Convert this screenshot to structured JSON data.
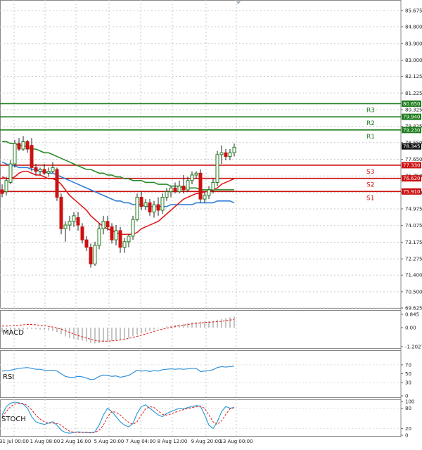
{
  "chart_data": {
    "type": "candlestick",
    "price_axis": {
      "ticks": [
        "85.675",
        "84.800",
        "83.900",
        "83.000",
        "82.125",
        "81.225",
        "80.325",
        "79.425",
        "78.550",
        "77.650",
        "76.750",
        "75.850",
        "74.975",
        "74.075",
        "73.175",
        "72.275",
        "71.400",
        "70.500",
        "69.625"
      ],
      "range": [
        69.625,
        85.675
      ]
    },
    "x_labels": [
      "31 Jul 00:00",
      "1 Aug 08:00",
      "2 Aug 16:00",
      "5 Aug 20:00",
      "7 Aug 04:00",
      "8 Aug 12:00",
      "9 Aug 20:00",
      "13 Aug 00:00"
    ],
    "current_price": "78.345",
    "levels": [
      {
        "name": "R3",
        "value": 80.65,
        "label": "80.650",
        "color": "#1e7d1e"
      },
      {
        "name": "R2",
        "value": 79.94,
        "label": "79.940",
        "color": "#1e7d1e"
      },
      {
        "name": "R1",
        "value": 79.23,
        "label": "79.230",
        "color": "#1e7d1e"
      },
      {
        "name": "S3",
        "value": 77.33,
        "label": "77.330",
        "color": "#cc1111"
      },
      {
        "name": "S2",
        "value": 76.62,
        "label": "76.620",
        "color": "#cc1111"
      },
      {
        "name": "S1",
        "value": 75.91,
        "label": "75.910",
        "color": "#cc1111"
      }
    ],
    "candles": [
      {
        "o": 76.0,
        "h": 76.3,
        "l": 75.6,
        "c": 75.8
      },
      {
        "o": 75.9,
        "h": 76.7,
        "l": 75.7,
        "c": 76.5
      },
      {
        "o": 76.4,
        "h": 77.6,
        "l": 76.3,
        "c": 77.4
      },
      {
        "o": 77.4,
        "h": 78.7,
        "l": 77.2,
        "c": 78.5
      },
      {
        "o": 78.5,
        "h": 78.8,
        "l": 78.1,
        "c": 78.2
      },
      {
        "o": 78.2,
        "h": 78.9,
        "l": 78.1,
        "c": 78.6
      },
      {
        "o": 78.6,
        "h": 78.7,
        "l": 78.0,
        "c": 78.2
      },
      {
        "o": 78.4,
        "h": 78.8,
        "l": 77.0,
        "c": 77.2
      },
      {
        "o": 77.2,
        "h": 77.4,
        "l": 76.8,
        "c": 77.0
      },
      {
        "o": 77.0,
        "h": 77.2,
        "l": 76.8,
        "c": 77.1
      },
      {
        "o": 77.1,
        "h": 77.4,
        "l": 76.8,
        "c": 76.9
      },
      {
        "o": 76.9,
        "h": 77.2,
        "l": 76.7,
        "c": 77.0
      },
      {
        "o": 77.0,
        "h": 77.5,
        "l": 76.9,
        "c": 77.2
      },
      {
        "o": 77.1,
        "h": 77.2,
        "l": 75.4,
        "c": 75.6
      },
      {
        "o": 75.6,
        "h": 75.8,
        "l": 73.6,
        "c": 73.9
      },
      {
        "o": 73.9,
        "h": 74.3,
        "l": 73.2,
        "c": 74.1
      },
      {
        "o": 74.1,
        "h": 74.6,
        "l": 73.8,
        "c": 74.3
      },
      {
        "o": 74.3,
        "h": 74.8,
        "l": 74.0,
        "c": 74.6
      },
      {
        "o": 74.5,
        "h": 74.8,
        "l": 73.8,
        "c": 74.1
      },
      {
        "o": 74.0,
        "h": 74.2,
        "l": 73.1,
        "c": 73.3
      },
      {
        "o": 73.3,
        "h": 73.5,
        "l": 72.7,
        "c": 72.9
      },
      {
        "o": 72.9,
        "h": 73.1,
        "l": 71.8,
        "c": 72.0
      },
      {
        "o": 72.0,
        "h": 73.2,
        "l": 71.9,
        "c": 73.0
      },
      {
        "o": 73.0,
        "h": 74.2,
        "l": 72.8,
        "c": 73.9
      },
      {
        "o": 73.9,
        "h": 74.6,
        "l": 73.6,
        "c": 74.3
      },
      {
        "o": 74.3,
        "h": 74.6,
        "l": 73.8,
        "c": 74.0
      },
      {
        "o": 74.0,
        "h": 74.2,
        "l": 73.1,
        "c": 73.3
      },
      {
        "o": 73.3,
        "h": 74.1,
        "l": 73.0,
        "c": 73.8
      },
      {
        "o": 73.8,
        "h": 74.0,
        "l": 72.6,
        "c": 72.9
      },
      {
        "o": 72.9,
        "h": 73.4,
        "l": 72.6,
        "c": 73.2
      },
      {
        "o": 73.2,
        "h": 73.6,
        "l": 72.9,
        "c": 73.5
      },
      {
        "o": 73.5,
        "h": 74.6,
        "l": 73.3,
        "c": 74.4
      },
      {
        "o": 74.4,
        "h": 75.8,
        "l": 74.3,
        "c": 75.6
      },
      {
        "o": 75.6,
        "h": 75.9,
        "l": 74.9,
        "c": 75.1
      },
      {
        "o": 75.1,
        "h": 75.5,
        "l": 74.9,
        "c": 75.3
      },
      {
        "o": 75.3,
        "h": 75.5,
        "l": 74.6,
        "c": 74.8
      },
      {
        "o": 74.8,
        "h": 75.4,
        "l": 74.5,
        "c": 75.2
      },
      {
        "o": 75.2,
        "h": 75.6,
        "l": 74.6,
        "c": 74.9
      },
      {
        "o": 74.9,
        "h": 75.8,
        "l": 74.7,
        "c": 75.6
      },
      {
        "o": 75.6,
        "h": 76.1,
        "l": 75.4,
        "c": 75.9
      },
      {
        "o": 75.9,
        "h": 76.2,
        "l": 75.6,
        "c": 76.1
      },
      {
        "o": 76.1,
        "h": 76.4,
        "l": 75.8,
        "c": 75.9
      },
      {
        "o": 75.9,
        "h": 76.5,
        "l": 75.8,
        "c": 76.2
      },
      {
        "o": 76.2,
        "h": 76.8,
        "l": 75.8,
        "c": 76.0
      },
      {
        "o": 76.0,
        "h": 76.7,
        "l": 75.9,
        "c": 76.5
      },
      {
        "o": 76.5,
        "h": 77.0,
        "l": 76.3,
        "c": 76.8
      },
      {
        "o": 76.8,
        "h": 77.0,
        "l": 76.6,
        "c": 76.9
      },
      {
        "o": 76.9,
        "h": 77.1,
        "l": 75.3,
        "c": 75.5
      },
      {
        "o": 75.5,
        "h": 75.9,
        "l": 75.3,
        "c": 75.7
      },
      {
        "o": 75.7,
        "h": 76.2,
        "l": 75.5,
        "c": 76.0
      },
      {
        "o": 76.0,
        "h": 76.6,
        "l": 75.8,
        "c": 76.4
      },
      {
        "o": 76.4,
        "h": 78.1,
        "l": 76.2,
        "c": 77.9
      },
      {
        "o": 77.9,
        "h": 78.4,
        "l": 77.4,
        "c": 78.0
      },
      {
        "o": 78.0,
        "h": 78.2,
        "l": 77.6,
        "c": 77.8
      },
      {
        "o": 77.8,
        "h": 78.2,
        "l": 77.6,
        "c": 78.0
      },
      {
        "o": 78.0,
        "h": 78.5,
        "l": 77.8,
        "c": 78.3
      }
    ],
    "ma_red": [
      76.7,
      76.6,
      76.6,
      76.7,
      76.9,
      77.0,
      77.0,
      76.9,
      76.8,
      76.8,
      76.7,
      76.6,
      76.6,
      76.5,
      76.3,
      76.0,
      75.7,
      75.5,
      75.3,
      75.1,
      74.9,
      74.6,
      74.4,
      74.2,
      74.0,
      73.9,
      73.8,
      73.7,
      73.6,
      73.6,
      73.6,
      73.6,
      73.7,
      73.9,
      74.0,
      74.1,
      74.2,
      74.3,
      74.5,
      74.7,
      74.9,
      75.1,
      75.3,
      75.5,
      75.6,
      75.7,
      75.8,
      75.8,
      75.9,
      75.9,
      76.0,
      76.1,
      76.3,
      76.4,
      76.5,
      76.6
    ],
    "ma_green": [
      78.6,
      78.6,
      78.5,
      78.5,
      78.4,
      78.4,
      78.3,
      78.2,
      78.2,
      78.1,
      78.0,
      78.0,
      77.9,
      77.8,
      77.7,
      77.6,
      77.5,
      77.4,
      77.3,
      77.2,
      77.1,
      77.1,
      77.0,
      76.9,
      76.9,
      76.8,
      76.8,
      76.7,
      76.7,
      76.6,
      76.6,
      76.5,
      76.5,
      76.5,
      76.4,
      76.4,
      76.4,
      76.3,
      76.3,
      76.3,
      76.2,
      76.2,
      76.2,
      76.1,
      76.1,
      76.1,
      76.1,
      76.0,
      76.0,
      76.0,
      76.0,
      76.0,
      76.0,
      76.0,
      76.0,
      76.0
    ],
    "ma_blue": [
      77.5,
      77.4,
      77.3,
      77.3,
      77.2,
      77.2,
      77.2,
      77.1,
      77.1,
      77.0,
      77.0,
      76.9,
      76.9,
      76.8,
      76.7,
      76.6,
      76.5,
      76.4,
      76.3,
      76.2,
      76.1,
      76.0,
      75.9,
      75.8,
      75.7,
      75.6,
      75.5,
      75.4,
      75.4,
      75.3,
      75.3,
      75.2,
      75.2,
      75.2,
      75.1,
      75.1,
      75.1,
      75.1,
      75.1,
      75.1,
      75.2,
      75.2,
      75.2,
      75.2,
      75.2,
      75.2,
      75.3,
      75.3,
      75.3,
      75.3,
      75.3,
      75.4,
      75.4,
      75.4,
      75.4,
      75.3
    ],
    "macd": {
      "label": "MACD",
      "ticks": [
        "0.845",
        "0.00",
        "-1.2027"
      ],
      "range": [
        -1.2027,
        0.845
      ],
      "histogram": [
        -0.3,
        -0.28,
        -0.25,
        -0.2,
        -0.15,
        -0.12,
        -0.1,
        -0.08,
        -0.1,
        -0.12,
        -0.15,
        -0.18,
        -0.22,
        -0.28,
        -0.4,
        -0.55,
        -0.65,
        -0.72,
        -0.78,
        -0.82,
        -0.88,
        -0.95,
        -1.0,
        -0.98,
        -0.92,
        -0.88,
        -0.85,
        -0.8,
        -0.78,
        -0.72,
        -0.65,
        -0.55,
        -0.45,
        -0.35,
        -0.28,
        -0.2,
        -0.12,
        -0.05,
        0.02,
        0.08,
        0.12,
        0.16,
        0.2,
        0.24,
        0.28,
        0.32,
        0.35,
        0.38,
        0.4,
        0.42,
        0.44,
        0.5,
        0.55,
        0.6,
        0.65,
        0.7
      ],
      "signal": [
        0.1,
        0.1,
        0.12,
        0.14,
        0.16,
        0.18,
        0.2,
        0.2,
        0.18,
        0.15,
        0.12,
        0.08,
        0.04,
        -0.02,
        -0.1,
        -0.2,
        -0.3,
        -0.4,
        -0.5,
        -0.58,
        -0.66,
        -0.74,
        -0.8,
        -0.84,
        -0.86,
        -0.86,
        -0.84,
        -0.82,
        -0.78,
        -0.74,
        -0.68,
        -0.62,
        -0.55,
        -0.48,
        -0.4,
        -0.32,
        -0.24,
        -0.16,
        -0.1,
        -0.04,
        0.02,
        0.08,
        0.12,
        0.16,
        0.2,
        0.24,
        0.28,
        0.3,
        0.32,
        0.34,
        0.36,
        0.38,
        0.4,
        0.44,
        0.48,
        0.52
      ]
    },
    "rsi": {
      "label": "RSI",
      "ticks": [
        "70",
        "50",
        "30",
        "0"
      ],
      "range": [
        0,
        100
      ],
      "values": [
        56,
        57,
        58,
        60,
        62,
        63,
        64,
        62,
        60,
        60,
        58,
        57,
        58,
        56,
        50,
        44,
        42,
        42,
        44,
        43,
        40,
        37,
        38,
        44,
        47,
        46,
        44,
        45,
        42,
        44,
        46,
        52,
        58,
        56,
        57,
        55,
        57,
        56,
        59,
        60,
        61,
        60,
        61,
        60,
        61,
        62,
        62,
        55,
        56,
        57,
        59,
        64,
        66,
        65,
        66,
        67
      ]
    },
    "stoch": {
      "label": "STOCH",
      "ticks": [
        "100",
        "80",
        "20",
        "0"
      ],
      "range": [
        0,
        100
      ],
      "k": [
        60,
        85,
        95,
        98,
        96,
        92,
        80,
        55,
        40,
        35,
        32,
        36,
        40,
        30,
        15,
        8,
        6,
        8,
        10,
        9,
        8,
        7,
        10,
        30,
        60,
        80,
        70,
        55,
        40,
        30,
        25,
        35,
        65,
        85,
        90,
        80,
        70,
        60,
        55,
        65,
        70,
        75,
        80,
        78,
        82,
        85,
        88,
        86,
        60,
        30,
        20,
        40,
        70,
        85,
        80,
        82
      ],
      "d": [
        55,
        70,
        85,
        92,
        95,
        94,
        88,
        75,
        60,
        48,
        40,
        36,
        36,
        35,
        30,
        20,
        12,
        9,
        8,
        8,
        9,
        8,
        8,
        15,
        30,
        55,
        70,
        68,
        60,
        48,
        38,
        32,
        40,
        60,
        78,
        85,
        82,
        72,
        62,
        60,
        63,
        68,
        72,
        76,
        79,
        82,
        84,
        86,
        80,
        60,
        40,
        32,
        42,
        62,
        78,
        82
      ]
    }
  }
}
